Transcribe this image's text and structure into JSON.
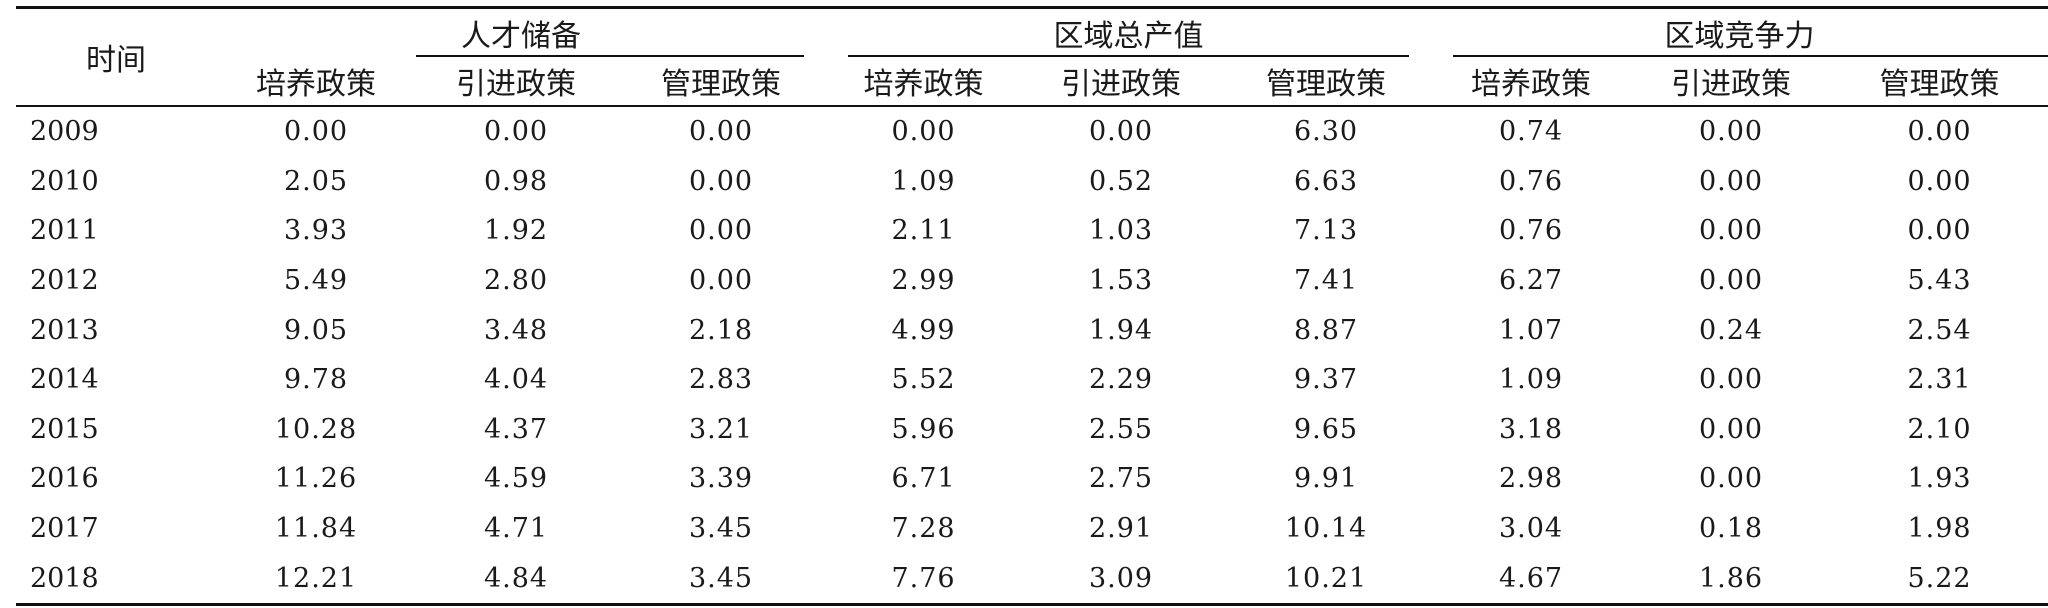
{
  "table": {
    "time_header": "时间",
    "groups": [
      {
        "label": "人才储备",
        "subs": [
          "培养政策",
          "引进政策",
          "管理政策"
        ]
      },
      {
        "label": "区域总产值",
        "subs": [
          "培养政策",
          "引进政策",
          "管理政策"
        ]
      },
      {
        "label": "区域竞争力",
        "subs": [
          "培养政策",
          "引进政策",
          "管理政策"
        ]
      }
    ],
    "rows": [
      {
        "year": "2009",
        "values": [
          "0.00",
          "0.00",
          "0.00",
          "0.00",
          "0.00",
          "6.30",
          "0.74",
          "0.00",
          "0.00"
        ]
      },
      {
        "year": "2010",
        "values": [
          "2.05",
          "0.98",
          "0.00",
          "1.09",
          "0.52",
          "6.63",
          "0.76",
          "0.00",
          "0.00"
        ]
      },
      {
        "year": "2011",
        "values": [
          "3.93",
          "1.92",
          "0.00",
          "2.11",
          "1.03",
          "7.13",
          "0.76",
          "0.00",
          "0.00"
        ]
      },
      {
        "year": "2012",
        "values": [
          "5.49",
          "2.80",
          "0.00",
          "2.99",
          "1.53",
          "7.41",
          "6.27",
          "0.00",
          "5.43"
        ]
      },
      {
        "year": "2013",
        "values": [
          "9.05",
          "3.48",
          "2.18",
          "4.99",
          "1.94",
          "8.87",
          "1.07",
          "0.24",
          "2.54"
        ]
      },
      {
        "year": "2014",
        "values": [
          "9.78",
          "4.04",
          "2.83",
          "5.52",
          "2.29",
          "9.37",
          "1.09",
          "0.00",
          "2.31"
        ]
      },
      {
        "year": "2015",
        "values": [
          "10.28",
          "4.37",
          "3.21",
          "5.96",
          "2.55",
          "9.65",
          "3.18",
          "0.00",
          "2.10"
        ]
      },
      {
        "year": "2016",
        "values": [
          "11.26",
          "4.59",
          "3.39",
          "6.71",
          "2.75",
          "9.91",
          "2.98",
          "0.00",
          "1.93"
        ]
      },
      {
        "year": "2017",
        "values": [
          "11.84",
          "4.71",
          "3.45",
          "7.28",
          "2.91",
          "10.14",
          "3.04",
          "0.18",
          "1.98"
        ]
      },
      {
        "year": "2018",
        "values": [
          "12.21",
          "4.84",
          "3.45",
          "7.76",
          "3.09",
          "10.21",
          "4.67",
          "1.86",
          "5.22"
        ]
      }
    ]
  }
}
